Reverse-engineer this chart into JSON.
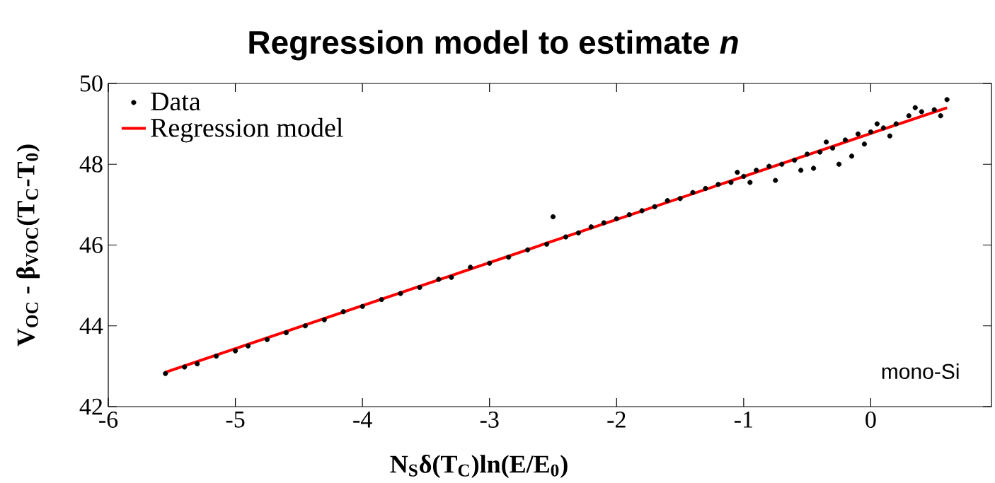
{
  "chart_data": {
    "type": "scatter",
    "title": "Regression model to estimate *n*",
    "xlabel": "N$_{S}$δ(T$_{C}$)ln(E/E$_{0}$)",
    "ylabel": "V$_{OC}$ - β$_{VOC}$(T$_{C}$-T$_{0}$)",
    "xlim": [
      -6,
      0.95
    ],
    "ylim": [
      42,
      50
    ],
    "xticks": [
      -6,
      -5,
      -4,
      -3,
      -2,
      -1,
      0
    ],
    "yticks": [
      42,
      44,
      46,
      48,
      50
    ],
    "legend": "top left",
    "annotations": [
      "mono-Si"
    ],
    "series": [
      {
        "name": "Data",
        "color": "#000000",
        "marker": "circle",
        "x": [
          -5.55,
          -5.4,
          -5.3,
          -5.15,
          -5.0,
          -4.9,
          -4.75,
          -4.6,
          -4.45,
          -4.3,
          -4.15,
          -4.0,
          -3.85,
          -3.7,
          -3.55,
          -3.4,
          -3.3,
          -3.15,
          -3.0,
          -2.85,
          -2.7,
          -2.55,
          -2.5,
          -2.4,
          -2.3,
          -2.2,
          -2.1,
          -2.0,
          -1.9,
          -1.8,
          -1.7,
          -1.6,
          -1.5,
          -1.4,
          -1.3,
          -1.2,
          -1.1,
          -1.05,
          -1.0,
          -0.95,
          -0.9,
          -0.8,
          -0.75,
          -0.7,
          -0.6,
          -0.55,
          -0.5,
          -0.45,
          -0.4,
          -0.35,
          -0.3,
          -0.25,
          -0.2,
          -0.15,
          -0.1,
          -0.05,
          0.0,
          0.05,
          0.1,
          0.15,
          0.2,
          0.3,
          0.35,
          0.4,
          0.5,
          0.55,
          0.6
        ],
        "values": [
          42.82,
          42.98,
          43.06,
          43.25,
          43.38,
          43.5,
          43.66,
          43.83,
          44.0,
          44.15,
          44.35,
          44.48,
          44.65,
          44.8,
          44.95,
          45.15,
          45.2,
          45.45,
          45.55,
          45.7,
          45.88,
          46.02,
          46.7,
          46.2,
          46.3,
          46.45,
          46.55,
          46.65,
          46.75,
          46.85,
          46.95,
          47.1,
          47.15,
          47.3,
          47.4,
          47.5,
          47.55,
          47.8,
          47.7,
          47.55,
          47.85,
          47.95,
          47.6,
          48.0,
          48.1,
          47.85,
          48.25,
          47.9,
          48.3,
          48.55,
          48.4,
          48.0,
          48.6,
          48.2,
          48.75,
          48.5,
          48.8,
          49.0,
          48.9,
          48.7,
          49.0,
          49.2,
          49.4,
          49.3,
          49.35,
          49.2,
          49.6
        ]
      },
      {
        "name": "Regression model",
        "type": "line",
        "color": "#ff0000",
        "marker": "none",
        "line_style": "solid",
        "x": [
          -5.55,
          0.6
        ],
        "values": [
          42.85,
          49.4
        ]
      }
    ]
  }
}
